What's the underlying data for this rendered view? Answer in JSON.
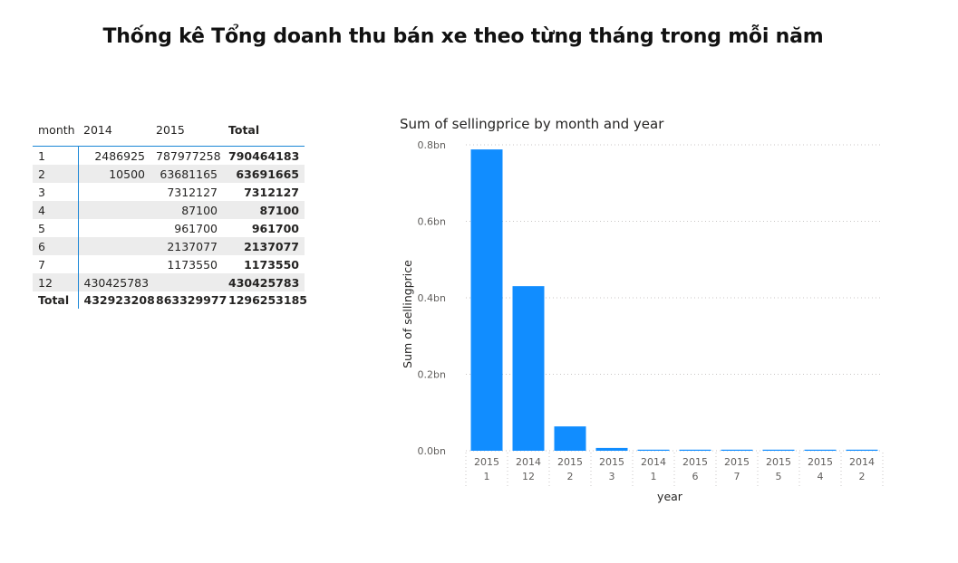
{
  "page": {
    "title": "Thống kê Tổng doanh thu bán xe theo từng tháng trong mỗi năm"
  },
  "matrix": {
    "headers": [
      "month",
      "2014",
      "2015",
      "Total"
    ],
    "rows": [
      [
        "1",
        "2486925",
        "787977258",
        "790464183"
      ],
      [
        "2",
        "10500",
        "63681165",
        "63691665"
      ],
      [
        "3",
        "",
        "7312127",
        "7312127"
      ],
      [
        "4",
        "",
        "87100",
        "87100"
      ],
      [
        "5",
        "",
        "961700",
        "961700"
      ],
      [
        "6",
        "",
        "2137077",
        "2137077"
      ],
      [
        "7",
        "",
        "1173550",
        "1173550"
      ],
      [
        "12",
        "430425783",
        "",
        "430425783"
      ]
    ],
    "total_row": [
      "Total",
      "432923208",
      "863329977",
      "1296253185"
    ]
  },
  "chart_data": {
    "type": "bar",
    "title": "Sum of sellingprice by month and year",
    "xlabel": "year",
    "ylabel": "Sum of sellingprice",
    "categories": [
      [
        "2015",
        "1"
      ],
      [
        "2014",
        "12"
      ],
      [
        "2015",
        "2"
      ],
      [
        "2015",
        "3"
      ],
      [
        "2014",
        "1"
      ],
      [
        "2015",
        "6"
      ],
      [
        "2015",
        "7"
      ],
      [
        "2015",
        "5"
      ],
      [
        "2015",
        "4"
      ],
      [
        "2014",
        "2"
      ]
    ],
    "values": [
      787977258,
      430425783,
      63681165,
      7312127,
      2486925,
      2137077,
      1173550,
      961700,
      87100,
      10500
    ],
    "ylim": [
      0,
      800000000
    ],
    "yticks": [
      {
        "value": 0,
        "label": "0.0bn"
      },
      {
        "value": 200000000,
        "label": "0.2bn"
      },
      {
        "value": 400000000,
        "label": "0.4bn"
      },
      {
        "value": 600000000,
        "label": "0.6bn"
      },
      {
        "value": 800000000,
        "label": "0.8bn"
      }
    ],
    "bar_color": "#118dff",
    "grid": true
  }
}
